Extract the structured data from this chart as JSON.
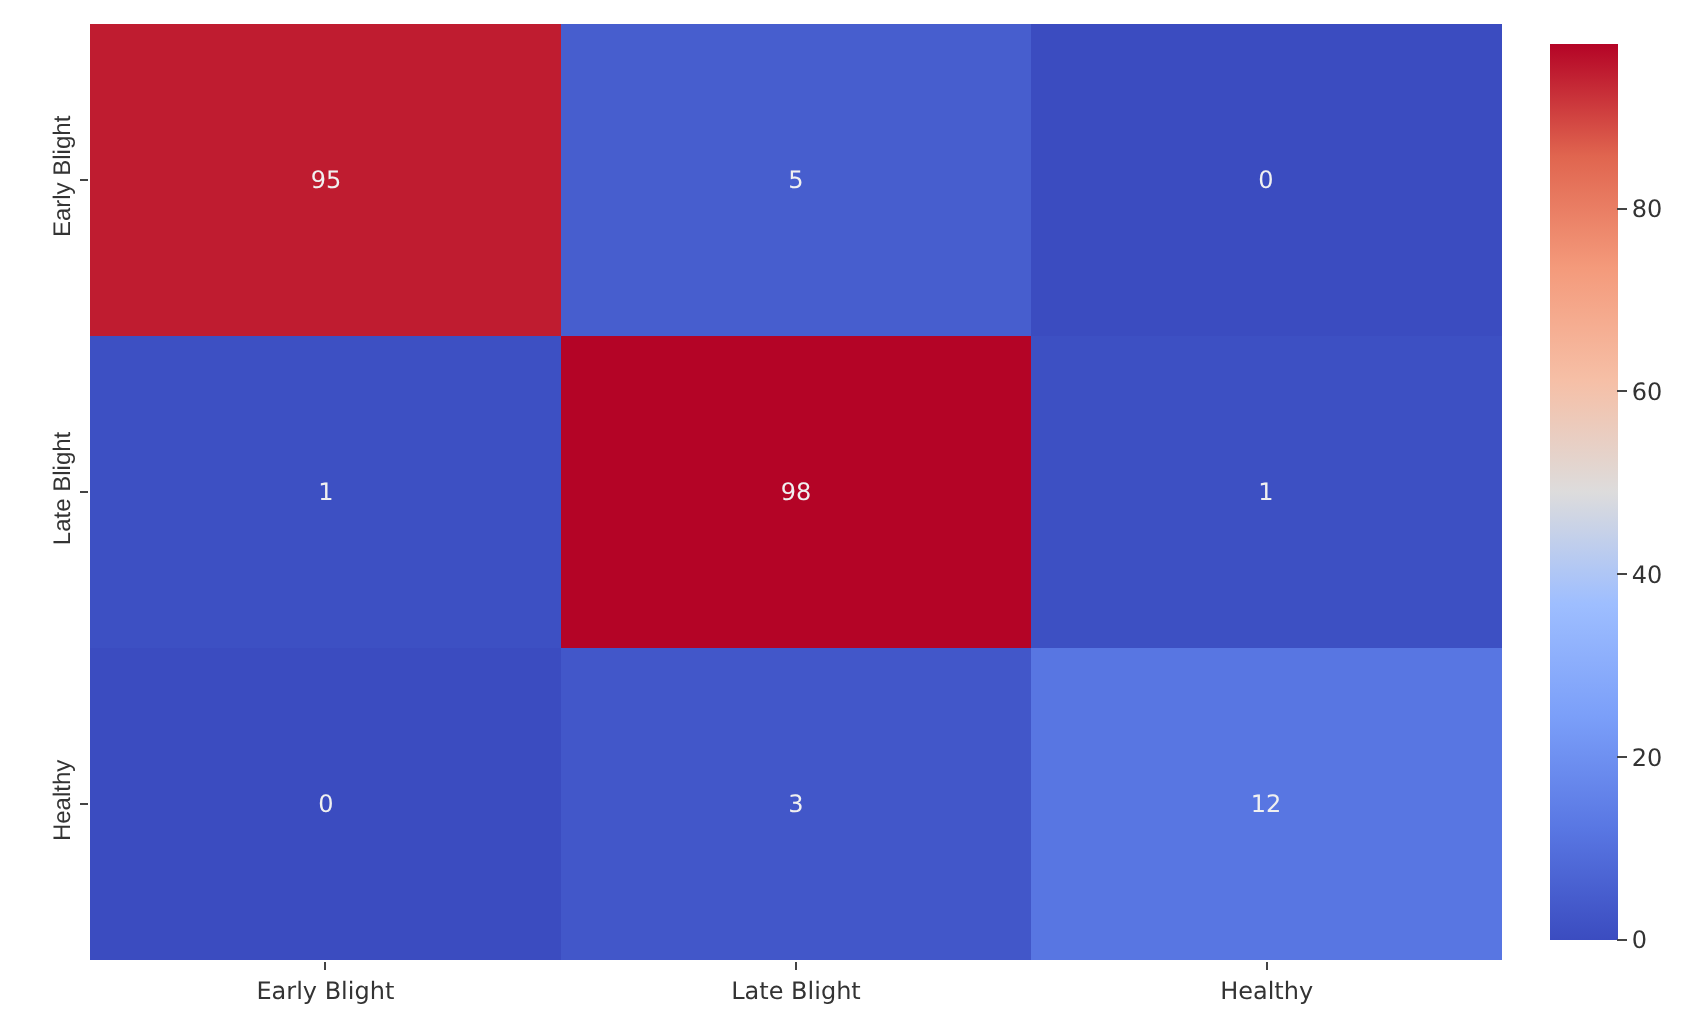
{
  "chart_data": {
    "type": "heatmap",
    "categories": [
      "Early Blight",
      "Late Blight",
      "Healthy"
    ],
    "y_categories": [
      "Early Blight",
      "Late Blight",
      "Healthy"
    ],
    "cells": [
      [
        95,
        5,
        0
      ],
      [
        1,
        98,
        1
      ],
      [
        0,
        3,
        12
      ]
    ],
    "clim": [
      0,
      98
    ],
    "cticks": [
      0,
      20,
      40,
      60,
      80
    ],
    "data_labels": true
  }
}
